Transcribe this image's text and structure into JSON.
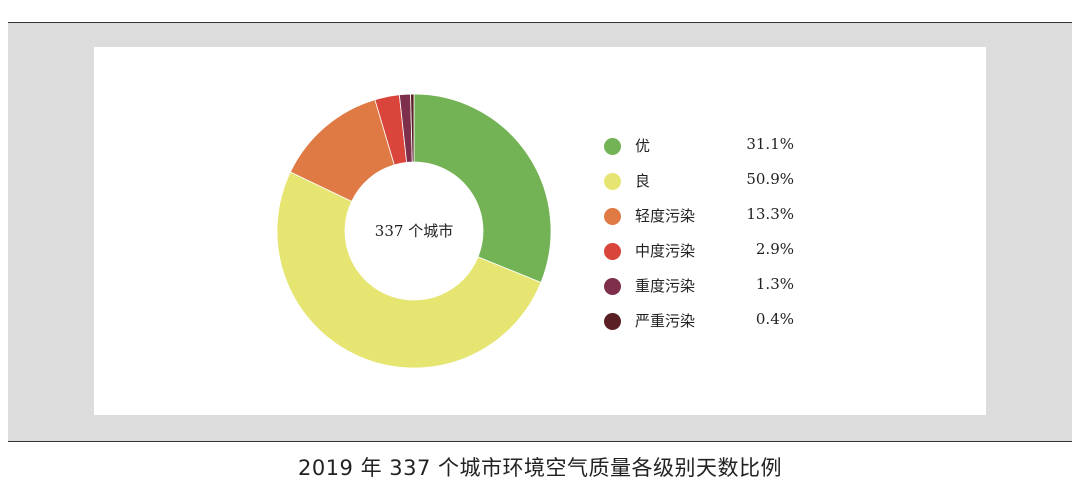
{
  "caption": "2019 年 337 个城市环境空气质量各级别天数比例",
  "chart_data": {
    "type": "pie",
    "variant": "donut",
    "center_label": "337 个城市",
    "slices": [
      {
        "label": "优",
        "value": 31.1,
        "display": "31.1%",
        "color": "#73b355"
      },
      {
        "label": "良",
        "value": 50.9,
        "display": "50.9%",
        "color": "#e6e571"
      },
      {
        "label": "轻度污染",
        "value": 13.3,
        "display": "13.3%",
        "color": "#e07a45"
      },
      {
        "label": "中度污染",
        "value": 2.9,
        "display": "2.9%",
        "color": "#d9453b"
      },
      {
        "label": "重度污染",
        "value": 1.3,
        "display": "1.3%",
        "color": "#7d2f4c"
      },
      {
        "label": "严重污染",
        "value": 0.4,
        "display": "0.4%",
        "color": "#5a1f22"
      }
    ],
    "start": "12 o'clock",
    "direction": "clockwise",
    "legend_position": "right"
  }
}
